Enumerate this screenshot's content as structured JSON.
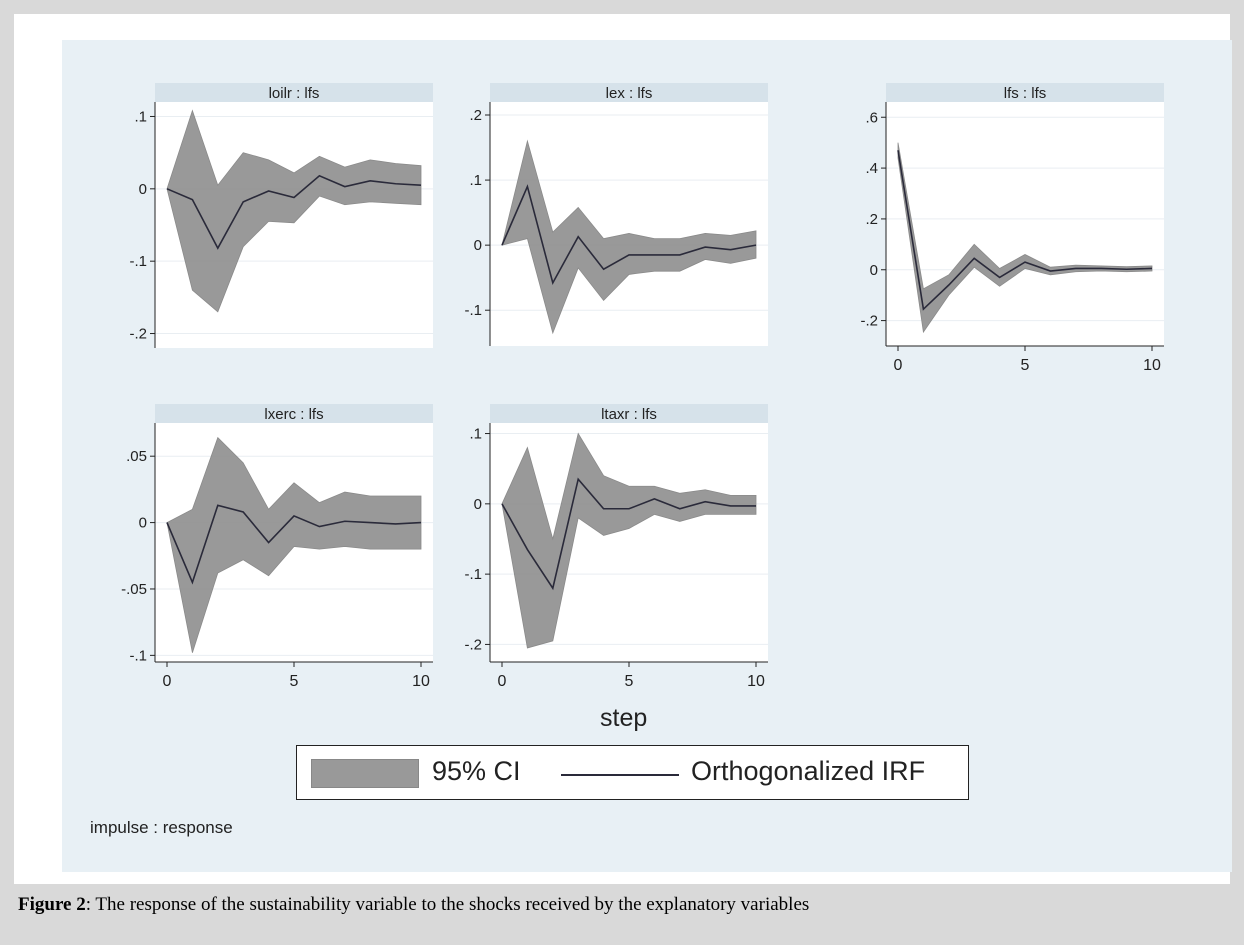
{
  "caption": {
    "label": "Figure 2",
    "text": ": The response of the sustainability variable to the shocks received by the explanatory variables"
  },
  "xtitle": "step",
  "note": "impulse : response",
  "legend": {
    "ci_label": "95% CI",
    "irf_label": "Orthogonalized IRF"
  },
  "colors": {
    "band": "#8f8f8f",
    "line": "#2a2a3a",
    "panel_header": "#d6e2ea"
  },
  "chart_data": [
    {
      "type": "area",
      "title": "loilr : lfs",
      "x": [
        0,
        1,
        2,
        3,
        4,
        5,
        6,
        7,
        8,
        9,
        10
      ],
      "irf": [
        0,
        -0.015,
        -0.082,
        -0.018,
        -0.003,
        -0.012,
        0.018,
        0.003,
        0.011,
        0.007,
        0.005
      ],
      "ci_low": [
        0,
        -0.14,
        -0.17,
        -0.08,
        -0.045,
        -0.047,
        -0.01,
        -0.022,
        -0.018,
        -0.02,
        -0.022
      ],
      "ci_high": [
        0,
        0.108,
        0.005,
        0.05,
        0.04,
        0.022,
        0.045,
        0.03,
        0.04,
        0.035,
        0.032
      ],
      "ylim": [
        -0.22,
        0.12
      ],
      "yticks": [
        0.1,
        0,
        -0.1,
        -0.2
      ],
      "ytick_labels": [
        ".1",
        "0",
        "-.1",
        "-.2"
      ],
      "xticks": [],
      "xtick_labels": []
    },
    {
      "type": "area",
      "title": "lex : lfs",
      "x": [
        0,
        1,
        2,
        3,
        4,
        5,
        6,
        7,
        8,
        9,
        10
      ],
      "irf": [
        0,
        0.09,
        -0.058,
        0.013,
        -0.037,
        -0.015,
        -0.015,
        -0.015,
        -0.003,
        -0.007,
        0
      ],
      "ci_low": [
        0,
        0.01,
        -0.135,
        -0.035,
        -0.085,
        -0.045,
        -0.04,
        -0.04,
        -0.022,
        -0.028,
        -0.02
      ],
      "ci_high": [
        0,
        0.16,
        0.02,
        0.058,
        0.01,
        0.018,
        0.01,
        0.01,
        0.018,
        0.015,
        0.022
      ],
      "ylim": [
        -0.155,
        0.22
      ],
      "yticks": [
        0.2,
        0.1,
        0,
        -0.1
      ],
      "ytick_labels": [
        ".2",
        ".1",
        "0",
        "-.1"
      ],
      "xticks": [],
      "xtick_labels": []
    },
    {
      "type": "area",
      "title": "lfs : lfs",
      "x": [
        0,
        1,
        2,
        3,
        4,
        5,
        6,
        7,
        8,
        9,
        10
      ],
      "irf": [
        0.47,
        -0.155,
        -0.06,
        0.045,
        -0.03,
        0.03,
        -0.005,
        0.005,
        0.005,
        0.002,
        0.005
      ],
      "ci_low": [
        0.44,
        -0.245,
        -0.1,
        0.01,
        -0.065,
        0.005,
        -0.02,
        -0.008,
        -0.005,
        -0.008,
        -0.005
      ],
      "ci_high": [
        0.5,
        -0.075,
        -0.02,
        0.1,
        0.005,
        0.06,
        0.01,
        0.018,
        0.015,
        0.012,
        0.015
      ],
      "ylim": [
        -0.3,
        0.66
      ],
      "yticks": [
        0.6,
        0.4,
        0.2,
        0,
        -0.2
      ],
      "ytick_labels": [
        ".6",
        ".4",
        ".2",
        "0",
        "-.2"
      ],
      "xticks": [
        0,
        5,
        10
      ],
      "xtick_labels": [
        "0",
        "5",
        "10"
      ]
    },
    {
      "type": "area",
      "title": "lxerc : lfs",
      "x": [
        0,
        1,
        2,
        3,
        4,
        5,
        6,
        7,
        8,
        9,
        10
      ],
      "irf": [
        0,
        -0.045,
        0.013,
        0.008,
        -0.015,
        0.005,
        -0.003,
        0.001,
        0,
        -0.001,
        0
      ],
      "ci_low": [
        0,
        -0.098,
        -0.038,
        -0.028,
        -0.04,
        -0.018,
        -0.02,
        -0.018,
        -0.02,
        -0.02,
        -0.02
      ],
      "ci_high": [
        0,
        0.01,
        0.064,
        0.045,
        0.01,
        0.03,
        0.015,
        0.023,
        0.02,
        0.02,
        0.02
      ],
      "ylim": [
        -0.105,
        0.075
      ],
      "yticks": [
        0.05,
        0,
        -0.05,
        -0.1
      ],
      "ytick_labels": [
        ".05",
        "0",
        "-.05",
        "-.1"
      ],
      "xticks": [
        0,
        5,
        10
      ],
      "xtick_labels": [
        "0",
        "5",
        "10"
      ]
    },
    {
      "type": "area",
      "title": "ltaxr : lfs",
      "x": [
        0,
        1,
        2,
        3,
        4,
        5,
        6,
        7,
        8,
        9,
        10
      ],
      "irf": [
        0,
        -0.065,
        -0.12,
        0.035,
        -0.007,
        -0.007,
        0.007,
        -0.007,
        0.003,
        -0.003,
        -0.003
      ],
      "ci_low": [
        0,
        -0.205,
        -0.195,
        -0.02,
        -0.045,
        -0.035,
        -0.015,
        -0.025,
        -0.015,
        -0.015,
        -0.015
      ],
      "ci_high": [
        0,
        0.08,
        -0.05,
        0.1,
        0.04,
        0.025,
        0.025,
        0.015,
        0.02,
        0.012,
        0.012
      ],
      "ylim": [
        -0.225,
        0.115
      ],
      "yticks": [
        0.1,
        0,
        -0.1,
        -0.2
      ],
      "ytick_labels": [
        ".1",
        "0",
        "-.1",
        "-.2"
      ],
      "xticks": [
        0,
        5,
        10
      ],
      "xtick_labels": [
        "0",
        "5",
        "10"
      ]
    }
  ]
}
